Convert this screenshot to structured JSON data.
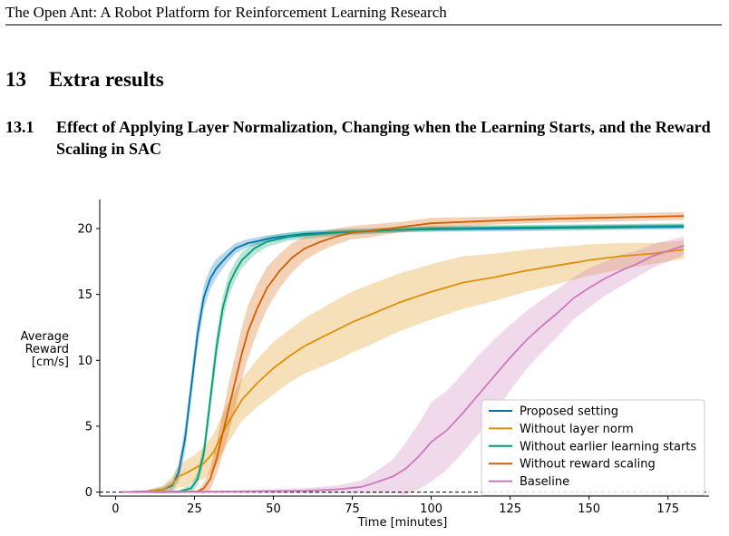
{
  "running_header": "The Open Ant: A Robot Platform for Reinforcement Learning Research",
  "section": {
    "number": "13",
    "title": "Extra results"
  },
  "subsection": {
    "number": "13.1",
    "title": "Effect of Applying Layer Normalization, Changing when the Learning Starts, and the Reward Scaling in SAC"
  },
  "chart_data": {
    "type": "line",
    "title": "",
    "xlabel": "Time [minutes]",
    "ylabel_lines": [
      "Average",
      "Reward",
      "[cm/s]"
    ],
    "xlim": [
      -5,
      188
    ],
    "ylim": [
      -0.3,
      22.2
    ],
    "xticks": [
      0,
      25,
      50,
      75,
      100,
      125,
      150,
      175
    ],
    "yticks": [
      0,
      5,
      10,
      15,
      20
    ],
    "grid": false,
    "legend_position": "lower-right",
    "reference_line": {
      "y": 0,
      "style": "dashed"
    },
    "series": [
      {
        "name": "Proposed setting",
        "color": "#0173b2",
        "x": [
          2,
          10,
          15,
          18,
          20,
          22,
          24,
          26,
          28,
          30,
          32,
          35,
          38,
          42,
          46,
          50,
          60,
          70,
          80,
          90,
          100,
          120,
          140,
          160,
          180
        ],
        "y": [
          0,
          0.05,
          0.2,
          0.5,
          1.5,
          4,
          8,
          12,
          14.8,
          16.2,
          17,
          17.8,
          18.5,
          18.9,
          19.1,
          19.3,
          19.6,
          19.7,
          19.8,
          19.9,
          19.95,
          20,
          20.05,
          20.1,
          20.15
        ],
        "band": [
          0.05,
          0.1,
          0.2,
          0.4,
          0.7,
          1,
          1,
          1,
          0.9,
          0.8,
          0.7,
          0.5,
          0.4,
          0.3,
          0.3,
          0.25,
          0.2,
          0.2,
          0.2,
          0.2,
          0.2,
          0.2,
          0.2,
          0.2,
          0.2
        ]
      },
      {
        "name": "Without layer norm",
        "color": "#de8f05",
        "x": [
          2,
          10,
          15,
          18,
          20,
          22,
          25,
          28,
          31,
          35,
          40,
          45,
          50,
          55,
          60,
          65,
          70,
          75,
          80,
          90,
          100,
          110,
          120,
          130,
          140,
          150,
          160,
          170,
          180
        ],
        "y": [
          0,
          0.05,
          0.2,
          0.6,
          1.2,
          1.4,
          1.8,
          2.2,
          3,
          5,
          7,
          8.3,
          9.4,
          10.3,
          11.1,
          11.7,
          12.3,
          12.9,
          13.4,
          14.4,
          15.2,
          15.9,
          16.3,
          16.8,
          17.2,
          17.6,
          17.9,
          18.1,
          18.4
        ],
        "band": [
          0.05,
          0.1,
          0.3,
          0.6,
          0.8,
          1,
          1,
          1.2,
          1.4,
          1.5,
          1.6,
          1.8,
          2,
          2,
          2.1,
          2.2,
          2.3,
          2.3,
          2.3,
          2.2,
          2.1,
          2,
          1.8,
          1.6,
          1.4,
          1.2,
          1,
          0.8,
          0.7
        ]
      },
      {
        "name": "Without earlier learning starts",
        "color": "#029e73",
        "x": [
          2,
          20,
          24,
          26,
          28,
          30,
          32,
          34,
          36,
          38,
          40,
          44,
          48,
          55,
          60,
          70,
          80,
          90,
          100,
          120,
          140,
          160,
          180
        ],
        "y": [
          0,
          0.02,
          0.3,
          1,
          3,
          7,
          11,
          14,
          15.8,
          16.8,
          17.6,
          18.5,
          19,
          19.4,
          19.5,
          19.7,
          19.8,
          19.9,
          20,
          20.05,
          20.1,
          20.15,
          20.2
        ],
        "band": [
          0.05,
          0.1,
          0.3,
          0.5,
          0.8,
          1,
          1,
          0.9,
          0.8,
          0.7,
          0.6,
          0.5,
          0.4,
          0.3,
          0.3,
          0.25,
          0.2,
          0.2,
          0.2,
          0.2,
          0.2,
          0.2,
          0.2
        ]
      },
      {
        "name": "Without reward scaling",
        "color": "#d55e00",
        "x": [
          2,
          26,
          28,
          30,
          32,
          34,
          36,
          38,
          40,
          42,
          45,
          48,
          52,
          56,
          60,
          65,
          70,
          75,
          80,
          90,
          100,
          120,
          140,
          160,
          180
        ],
        "y": [
          0,
          0.05,
          0.3,
          1,
          2.5,
          4.5,
          6.5,
          8.5,
          10.5,
          12.2,
          14,
          15.5,
          16.8,
          17.8,
          18.5,
          19,
          19.4,
          19.7,
          19.8,
          20.1,
          20.4,
          20.6,
          20.75,
          20.85,
          20.95
        ],
        "band": [
          0.05,
          0.1,
          0.4,
          0.8,
          1.2,
          1.6,
          1.9,
          2,
          2,
          2,
          1.8,
          1.6,
          1.3,
          1.1,
          0.9,
          0.7,
          0.6,
          0.5,
          0.5,
          0.4,
          0.4,
          0.3,
          0.3,
          0.3,
          0.3
        ]
      },
      {
        "name": "Baseline",
        "color": "#cc78bc",
        "x": [
          2,
          40,
          60,
          70,
          78,
          82,
          88,
          92,
          96,
          100,
          105,
          110,
          115,
          120,
          125,
          130,
          135,
          140,
          145,
          150,
          155,
          160,
          165,
          170,
          175,
          180
        ],
        "y": [
          0,
          0.05,
          0.1,
          0.2,
          0.4,
          0.7,
          1.2,
          1.8,
          2.7,
          3.8,
          4.7,
          6,
          7.4,
          8.8,
          10.2,
          11.5,
          12.6,
          13.6,
          14.7,
          15.5,
          16.2,
          16.8,
          17.3,
          17.9,
          18.3,
          18.7
        ],
        "band": [
          0.05,
          0.1,
          0.2,
          0.3,
          0.5,
          0.8,
          1.3,
          2,
          2.5,
          3,
          3,
          3,
          3,
          2.8,
          2.5,
          2.2,
          2,
          1.8,
          1.6,
          1.5,
          1.3,
          1.2,
          1,
          0.9,
          0.8,
          0.7
        ]
      }
    ]
  }
}
